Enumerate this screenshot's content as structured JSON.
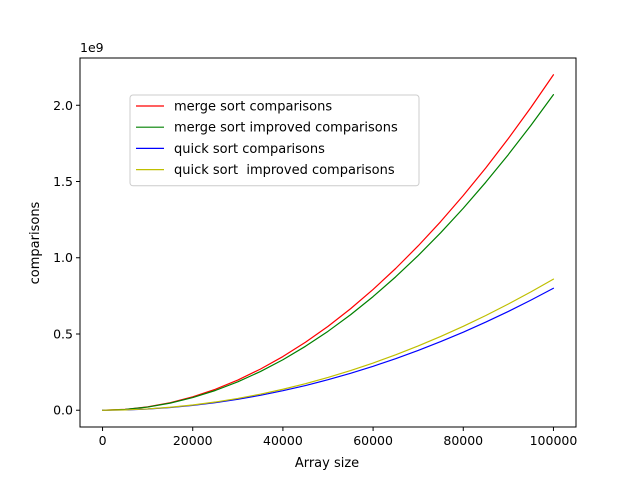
{
  "chart_data": {
    "type": "line",
    "title": "",
    "xlabel": "Array size",
    "ylabel": "comparisons",
    "y_offset_label": "1e9",
    "xlim": [
      -5000,
      105000
    ],
    "ylim": [
      -0.11,
      2.31
    ],
    "x_ticks": [
      0,
      20000,
      40000,
      60000,
      80000,
      100000
    ],
    "x_tick_labels": [
      "0",
      "20000",
      "40000",
      "60000",
      "80000",
      "100000"
    ],
    "y_ticks": [
      0.0,
      0.5,
      1.0,
      1.5,
      2.0
    ],
    "y_tick_labels": [
      "0.0",
      "0.5",
      "1.0",
      "1.5",
      "2.0"
    ],
    "grid": false,
    "legend_position": "upper-left",
    "x": [
      0,
      5000,
      10000,
      15000,
      20000,
      25000,
      30000,
      35000,
      40000,
      45000,
      50000,
      55000,
      60000,
      65000,
      70000,
      75000,
      80000,
      85000,
      90000,
      95000,
      100000
    ],
    "series": [
      {
        "name": "merge sort comparisons",
        "color": "#ff0000",
        "values": [
          0.0,
          0.0055,
          0.022,
          0.0495,
          0.088,
          0.1375,
          0.198,
          0.2695,
          0.352,
          0.4455,
          0.55,
          0.6655,
          0.792,
          0.9295,
          1.078,
          1.2375,
          1.408,
          1.5895,
          1.782,
          1.9855,
          2.2
        ]
      },
      {
        "name": "merge sort improved comparisons",
        "color": "#008000",
        "values": [
          0.0,
          0.00518,
          0.0207,
          0.0466,
          0.0828,
          0.1294,
          0.1863,
          0.2536,
          0.3312,
          0.4192,
          0.5175,
          0.6262,
          0.7452,
          0.8746,
          1.0143,
          1.1644,
          1.3248,
          1.4956,
          1.6767,
          1.8682,
          2.07
        ]
      },
      {
        "name": "quick sort comparisons",
        "color": "#0000ff",
        "values": [
          0.0,
          0.002,
          0.008,
          0.018,
          0.032,
          0.05,
          0.072,
          0.098,
          0.128,
          0.162,
          0.2,
          0.242,
          0.288,
          0.338,
          0.392,
          0.45,
          0.512,
          0.578,
          0.648,
          0.722,
          0.8
        ]
      },
      {
        "name": "quick sort  improved comparisons",
        "color": "#bfbf00",
        "values": [
          0.0,
          0.00215,
          0.0086,
          0.01935,
          0.0344,
          0.05375,
          0.0774,
          0.10535,
          0.1376,
          0.17415,
          0.215,
          0.26015,
          0.3096,
          0.36335,
          0.4214,
          0.48375,
          0.5504,
          0.62135,
          0.6966,
          0.77615,
          0.86
        ]
      }
    ]
  }
}
